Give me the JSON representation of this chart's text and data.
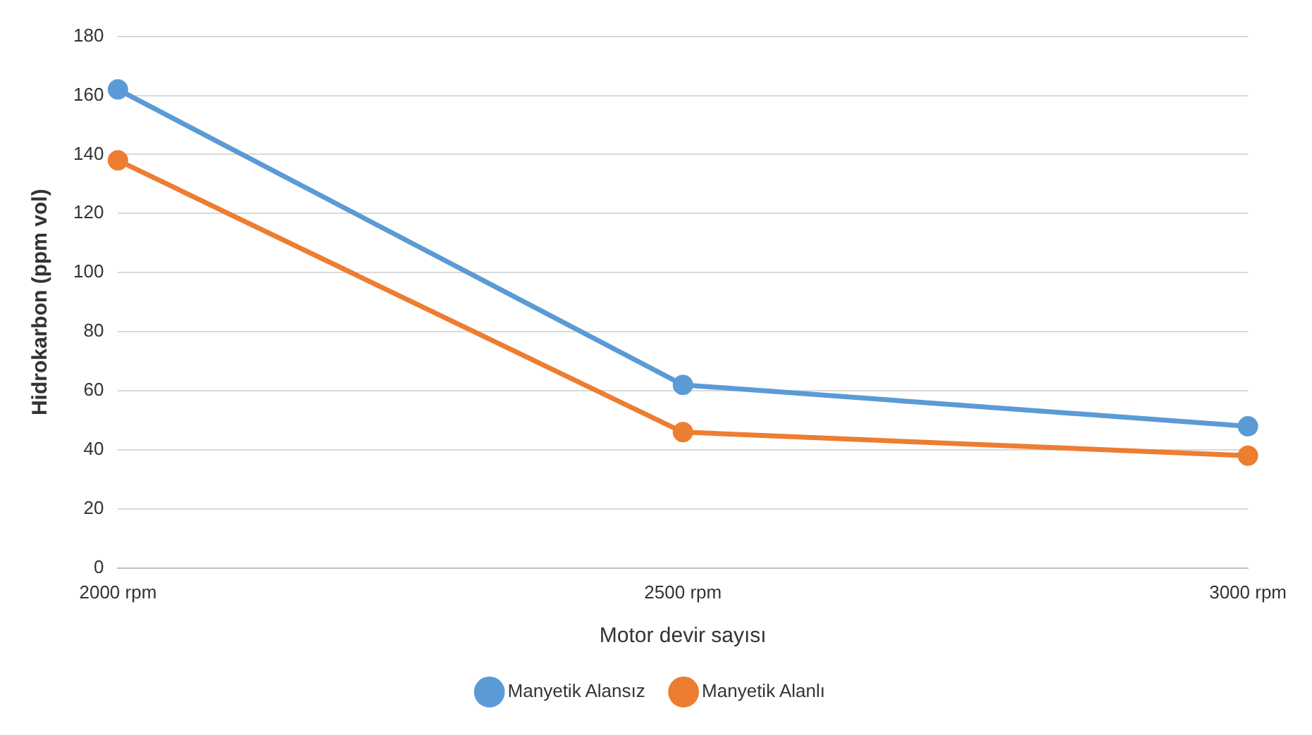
{
  "chart_data": {
    "type": "line",
    "xlabel": "Motor devir sayısı",
    "ylabel": "Hidrokarbon (ppm vol)",
    "categories": [
      "2000 rpm",
      "2500 rpm",
      "3000 rpm"
    ],
    "series": [
      {
        "name": "Manyetik Alansız",
        "color": "#5b9bd5",
        "values": [
          162,
          62,
          48
        ]
      },
      {
        "name": "Manyetik Alanlı",
        "color": "#ed7d31",
        "values": [
          138,
          46,
          38
        ]
      }
    ],
    "ylim": [
      0,
      180
    ],
    "yticks": [
      0,
      20,
      40,
      60,
      80,
      100,
      120,
      140,
      160,
      180
    ],
    "grid": "y",
    "legend": "bottom",
    "marker": "circle",
    "line_style": "solid"
  }
}
